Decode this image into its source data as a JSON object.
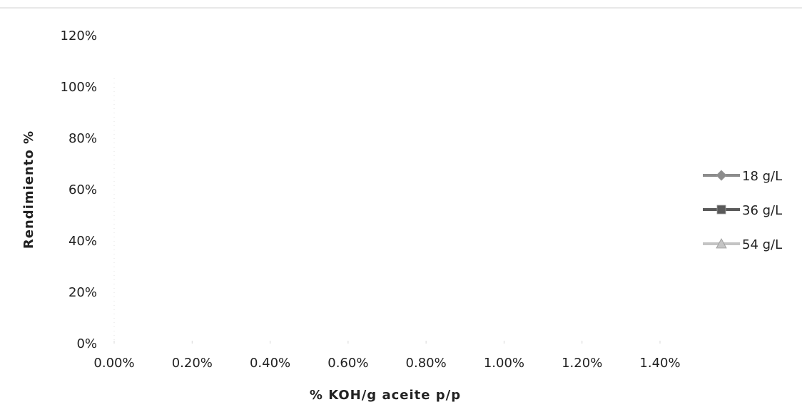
{
  "chart_data": {
    "type": "line",
    "xlabel": "% KOH/g aceite p/p",
    "ylabel": "Rendimiento %",
    "xlim": [
      0,
      0.014
    ],
    "ylim": [
      0,
      1.2
    ],
    "x_ticks": [
      "0.00%",
      "0.20%",
      "0.40%",
      "0.60%",
      "0.80%",
      "1.00%",
      "1.20%",
      "1.40%"
    ],
    "y_ticks": [
      "0%",
      "20%",
      "40%",
      "60%",
      "80%",
      "100%",
      "120%"
    ],
    "grid": false,
    "legend_position": "right",
    "series": [
      {
        "name": "18 g/L",
        "marker": "diamond",
        "color": "#8c8c8c",
        "x": [],
        "y": []
      },
      {
        "name": "36 g/L",
        "marker": "square",
        "color": "#5a5a5a",
        "x": [],
        "y": []
      },
      {
        "name": "54 g/L",
        "marker": "triangle",
        "color": "#c4c4c4",
        "x": [],
        "y": []
      }
    ]
  }
}
